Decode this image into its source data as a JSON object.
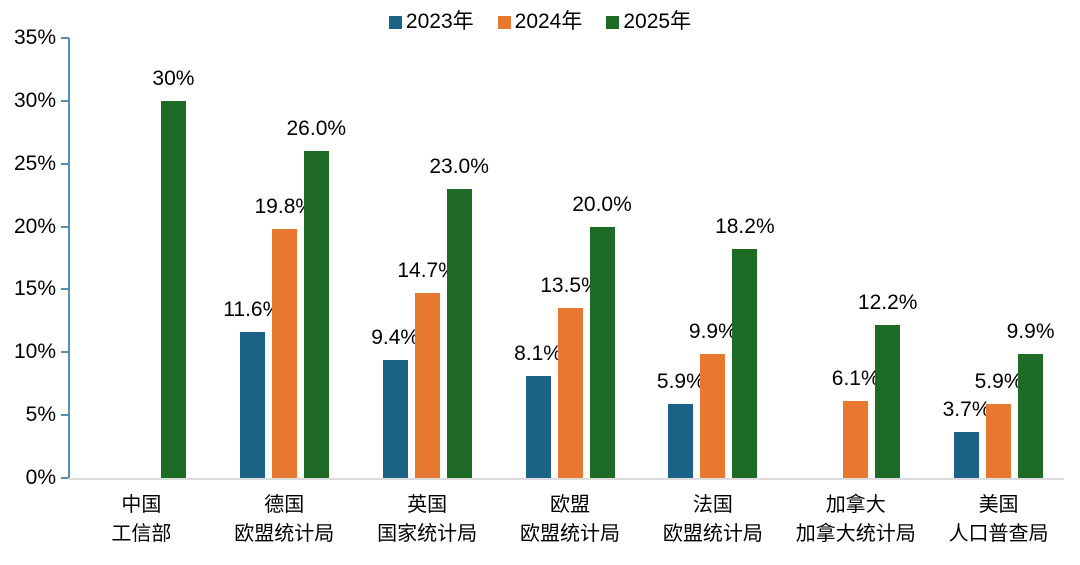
{
  "chart_data": {
    "type": "bar",
    "title": "",
    "categories": [
      {
        "line1": "中国",
        "line2": "工信部"
      },
      {
        "line1": "德国",
        "line2": "欧盟统计局"
      },
      {
        "line1": "英国",
        "line2": "国家统计局"
      },
      {
        "line1": "欧盟",
        "line2": "欧盟统计局"
      },
      {
        "line1": "法国",
        "line2": "欧盟统计局"
      },
      {
        "line1": "加拿大",
        "line2": "加拿大统计局"
      },
      {
        "line1": "美国",
        "line2": "人口普查局"
      }
    ],
    "series": [
      {
        "name": "2023年",
        "color": "#1A6386",
        "values": [
          null,
          11.6,
          9.4,
          8.1,
          5.9,
          null,
          3.7
        ],
        "labels": [
          "",
          "11.6%",
          "9.4%",
          "8.1%",
          "5.9%",
          "",
          "3.7%"
        ]
      },
      {
        "name": "2024年",
        "color": "#E87730",
        "values": [
          null,
          19.8,
          14.7,
          13.5,
          9.9,
          6.1,
          5.9
        ],
        "labels": [
          "",
          "19.8%",
          "14.7%",
          "13.5%",
          "9.9%",
          "6.1%",
          "5.9%"
        ]
      },
      {
        "name": "2025年",
        "color": "#1E6B26",
        "values": [
          30,
          26.0,
          23.0,
          20.0,
          18.2,
          12.2,
          9.9
        ],
        "labels": [
          "30%",
          "26.0%",
          "23.0%",
          "20.0%",
          "18.2%",
          "12.2%",
          "9.9%"
        ]
      }
    ],
    "xlabel": "",
    "ylabel": "",
    "ylim": [
      0,
      35
    ],
    "ytick_step": 5,
    "ytick_labels": [
      "0%",
      "5%",
      "10%",
      "15%",
      "20%",
      "25%",
      "30%",
      "35%"
    ],
    "legend_position": "top-center",
    "grid": false
  },
  "style": {
    "axis_line_color": "#5B8DB0",
    "baseline_color": "#DCDCDC",
    "text_color": "#000000",
    "background": "#FFFFFF"
  }
}
